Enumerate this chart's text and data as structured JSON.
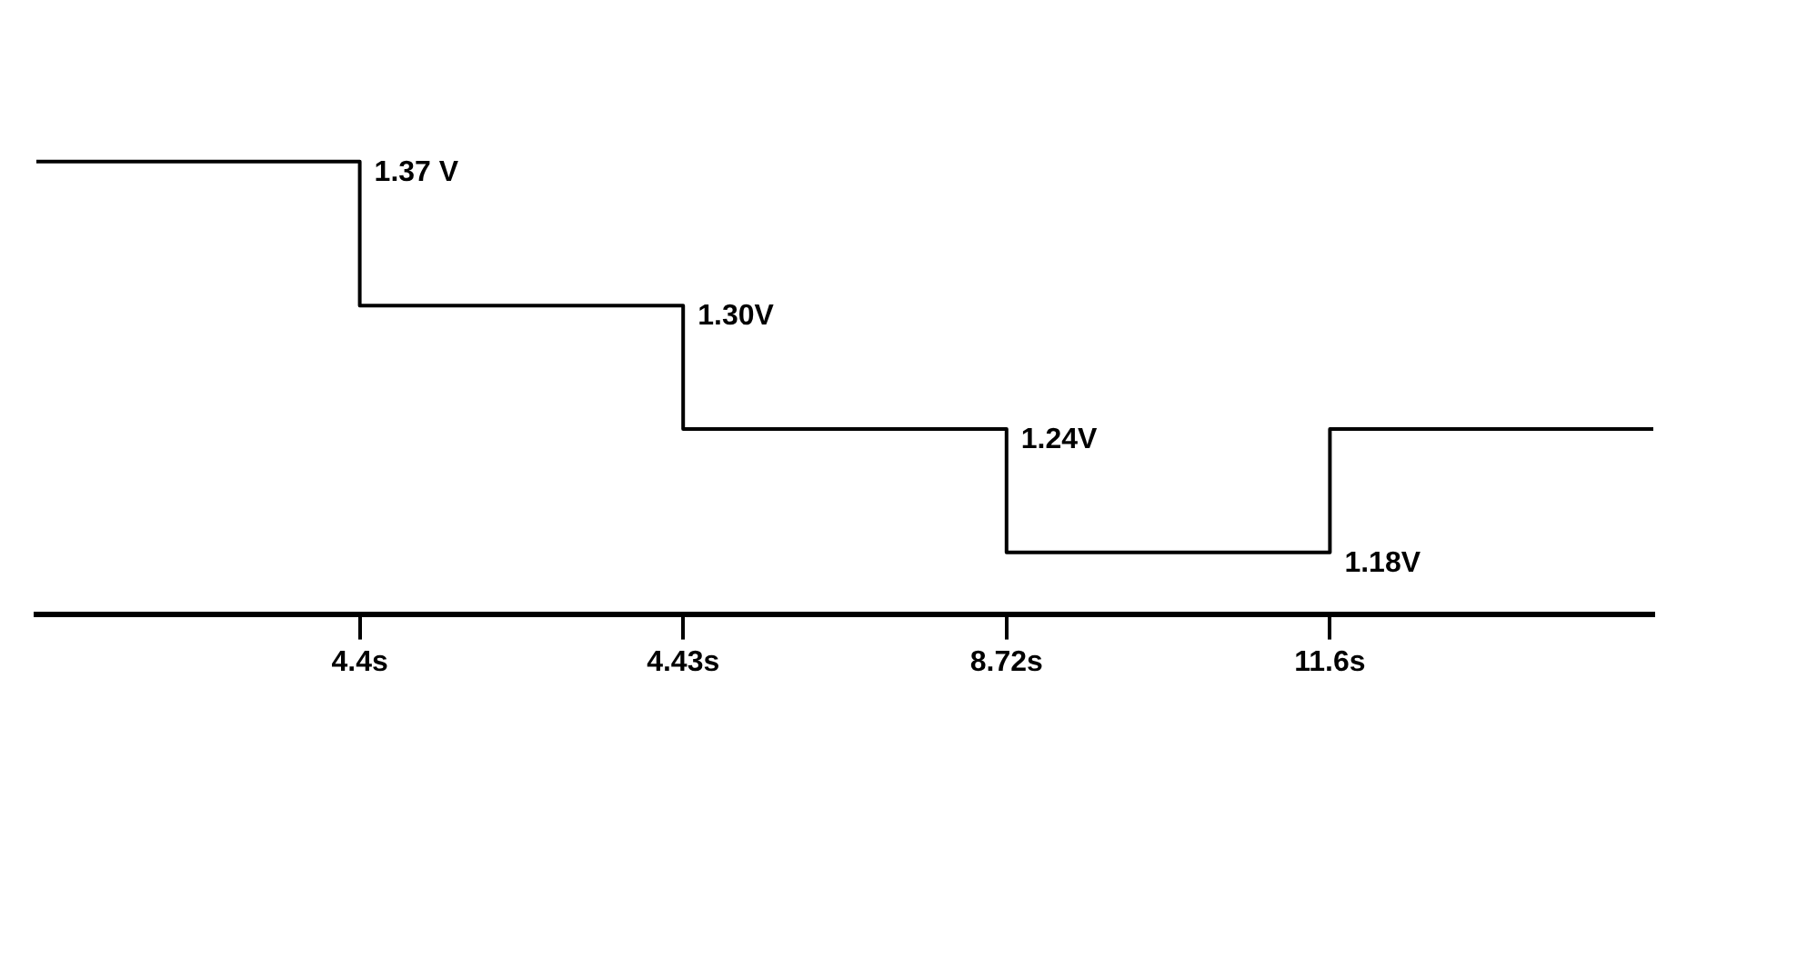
{
  "chart_data": {
    "type": "step",
    "categories": [
      null,
      "4.4s",
      "4.43s",
      "8.72s",
      "11.6s",
      null
    ],
    "series": [
      {
        "color": "#000000",
        "values": [
          1.37,
          1.37,
          1.3,
          1.24,
          1.18,
          1.24
        ],
        "value_labels": [
          null,
          "1.37 V",
          "1.30V",
          "1.24V",
          "1.18V",
          null
        ]
      }
    ],
    "grid": false,
    "legend": false,
    "marker": "none",
    "line_style": "solid",
    "tick_labels": "x"
  }
}
